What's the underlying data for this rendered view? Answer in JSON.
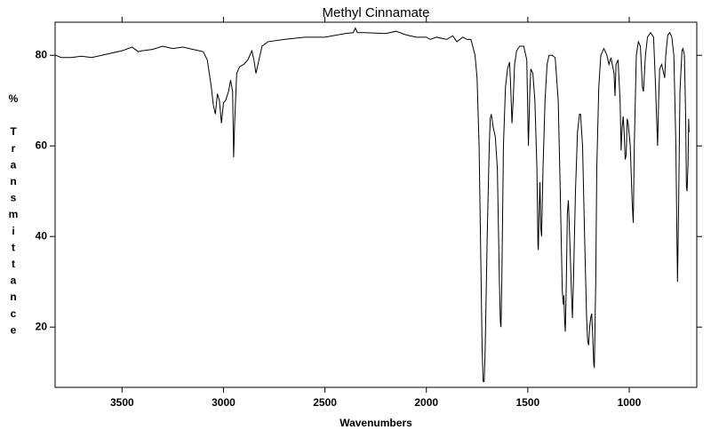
{
  "chart_data": {
    "type": "line",
    "title": "Methyl Cinnamate",
    "x_label": "Wavenumbers",
    "y_label": "% Transmittance",
    "xlim": [
      3830,
      667
    ],
    "ylim": [
      6.7,
      87.3
    ],
    "xticks": [
      3500,
      3000,
      2500,
      2000,
      1500,
      1000
    ],
    "yticks": [
      20,
      40,
      60,
      80
    ],
    "color": "#000000",
    "x": [
      3828,
      3800,
      3750,
      3700,
      3650,
      3600,
      3550,
      3500,
      3450,
      3420,
      3400,
      3350,
      3300,
      3250,
      3200,
      3150,
      3100,
      3080,
      3060,
      3050,
      3040,
      3030,
      3020,
      3010,
      3000,
      2990,
      2975,
      2965,
      2955,
      2950,
      2945,
      2935,
      2920,
      2900,
      2880,
      2860,
      2850,
      2840,
      2830,
      2810,
      2780,
      2700,
      2600,
      2500,
      2400,
      2360,
      2350,
      2340,
      2300,
      2200,
      2150,
      2100,
      2050,
      2000,
      1980,
      1950,
      1900,
      1870,
      1850,
      1820,
      1800,
      1780,
      1760,
      1750,
      1740,
      1730,
      1725,
      1720,
      1715,
      1710,
      1700,
      1690,
      1685,
      1680,
      1670,
      1660,
      1650,
      1640,
      1635,
      1632,
      1628,
      1620,
      1610,
      1600,
      1590,
      1585,
      1578,
      1572,
      1565,
      1555,
      1540,
      1520,
      1505,
      1497,
      1490,
      1485,
      1475,
      1465,
      1455,
      1450,
      1448,
      1445,
      1440,
      1436,
      1432,
      1425,
      1415,
      1405,
      1395,
      1380,
      1365,
      1350,
      1340,
      1330,
      1325,
      1322,
      1318,
      1315,
      1310,
      1305,
      1300,
      1295,
      1285,
      1280,
      1275,
      1265,
      1255,
      1245,
      1240,
      1230,
      1220,
      1210,
      1205,
      1200,
      1195,
      1190,
      1185,
      1180,
      1175,
      1172,
      1165,
      1160,
      1150,
      1140,
      1125,
      1110,
      1100,
      1090,
      1075,
      1070,
      1065,
      1055,
      1045,
      1040,
      1035,
      1030,
      1025,
      1020,
      1015,
      1010,
      1005,
      995,
      985,
      980,
      975,
      965,
      955,
      945,
      935,
      930,
      920,
      910,
      895,
      880,
      870,
      865,
      860,
      855,
      850,
      840,
      830,
      825,
      820,
      810,
      800,
      790,
      780,
      770,
      765,
      762,
      757,
      750,
      740,
      735,
      728,
      722,
      718,
      715,
      710,
      707,
      705
    ],
    "values": [
      80,
      79.5,
      79.5,
      79.8,
      79.5,
      80,
      80.5,
      81,
      81.8,
      80.8,
      81,
      81.3,
      82,
      81.5,
      81.8,
      81.3,
      80.8,
      79,
      73,
      69,
      67,
      71.5,
      70,
      65,
      69.5,
      70,
      72,
      74.5,
      72,
      57.5,
      65,
      76,
      77.5,
      78,
      79,
      81,
      79,
      76,
      78,
      82,
      83,
      83.5,
      84,
      84,
      84.8,
      85,
      86,
      85,
      85,
      84.8,
      85.3,
      84.5,
      84,
      84,
      83.5,
      84,
      83.5,
      84.3,
      83,
      84,
      83.5,
      83.5,
      80,
      75,
      60,
      30,
      15,
      8,
      8,
      15,
      40,
      60,
      66,
      67,
      64,
      62,
      55,
      30,
      21,
      20,
      30,
      60,
      73,
      77,
      78.5,
      74,
      65,
      70,
      78,
      81,
      82,
      82,
      79,
      60,
      72,
      77,
      76,
      70,
      55,
      38,
      37,
      44,
      52,
      42,
      40,
      55,
      70,
      78,
      80,
      80,
      79.5,
      70,
      50,
      28,
      25,
      27,
      21,
      19,
      30,
      45,
      48,
      42,
      28,
      22,
      30,
      50,
      63,
      67,
      67,
      60,
      40,
      22,
      17,
      16,
      20,
      22,
      23,
      18,
      12,
      11,
      30,
      55,
      73,
      80,
      81.5,
      80,
      78,
      79.5,
      76,
      71,
      78,
      79,
      70,
      59,
      64,
      66.5,
      63,
      57,
      58,
      66,
      65,
      60,
      47,
      43,
      60,
      80,
      83,
      82,
      73,
      72,
      80,
      84,
      85,
      84,
      73,
      66,
      60,
      70,
      77,
      78,
      76,
      75,
      80,
      84.5,
      85,
      84,
      80,
      60,
      40,
      30,
      45,
      72,
      81,
      81.5,
      80,
      67,
      51,
      50,
      56,
      66,
      63
    ]
  }
}
